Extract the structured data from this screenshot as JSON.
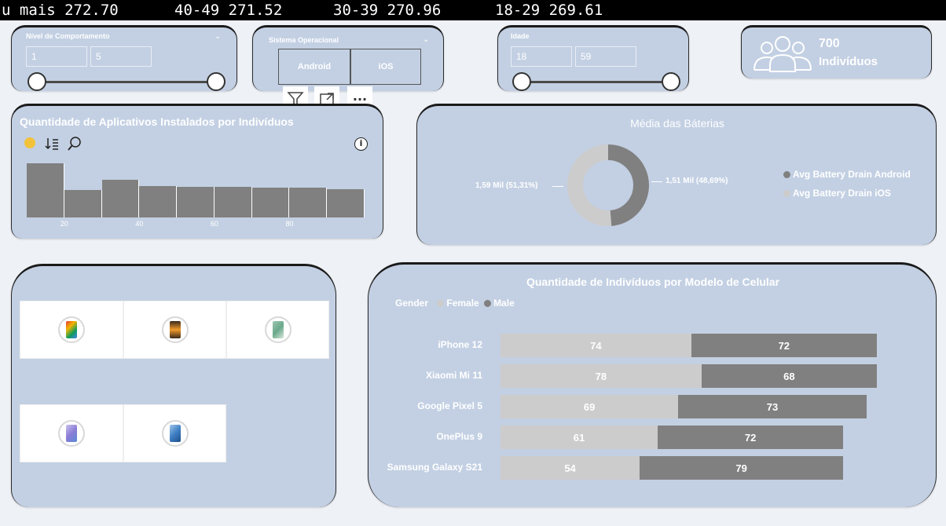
{
  "ticker": [
    {
      "text": "u mais 272.70"
    },
    {
      "text": "40-49 271.52"
    },
    {
      "text": "30-39 270.96"
    },
    {
      "text": "18-29 269.61"
    }
  ],
  "slicer_behavior": {
    "title": "Nível de Comportamento",
    "min": "1",
    "max": "5"
  },
  "slicer_os": {
    "title": "Sistema Operacional",
    "options": [
      "Android",
      "iOS"
    ]
  },
  "slicer_age": {
    "title": "Idade",
    "min": "18",
    "max": "59"
  },
  "kpi": {
    "value": "700",
    "label": "Indivíduos"
  },
  "visual_header": {
    "filter_icon": "filter-icon",
    "focus_icon": "focus-mode-icon",
    "more_icon": "more-options-icon",
    "more_label": "···"
  },
  "histogram": {
    "title": "Quantidade de Aplicativos Instalados por Indivíduos",
    "icons": [
      "palette-icon",
      "sort-icon",
      "zoom-icon",
      "info-icon"
    ],
    "info_glyph": "i"
  },
  "donut_card": {
    "title": "Média das Báterias",
    "label_left": "1,59 Mil (51,31%)",
    "label_right": "1,51 Mil (48,69%)",
    "legend": [
      "Avg Battery Drain Android",
      "Avg Battery Drain iOS"
    ]
  },
  "gallery": {
    "tiles": [
      {
        "icon": "phone-google-pixel-icon",
        "color": "#e23b2e"
      },
      {
        "icon": "phone-iphone-icon",
        "color": "#c4561a"
      },
      {
        "icon": "phone-xiaomi-icon",
        "color": "#6aa88a"
      },
      {
        "icon": "phone-oneplus-icon",
        "color": "#8b7cd6"
      },
      {
        "icon": "phone-samsung-icon",
        "color": "#3f7fc4"
      }
    ]
  },
  "bar_card": {
    "title": "Quantidade de Indivíduos por Modelo de Celular",
    "legend_title": "Gender",
    "legend": [
      "Female",
      "Male"
    ]
  },
  "colors": {
    "card_bg": "#c3d0e3",
    "dark_gray": "#808080",
    "light_gray": "#cccccc",
    "white": "#ffffff"
  },
  "chart_data": [
    {
      "type": "bar",
      "title": "Quantidade de Aplicativos Instalados por Indivíduos",
      "x_ticks": [
        "20",
        "40",
        "60",
        "80"
      ],
      "bins": [
        {
          "from": 10,
          "to": 20,
          "value": 72
        },
        {
          "from": 20,
          "to": 30,
          "value": 36
        },
        {
          "from": 30,
          "to": 40,
          "value": 50
        },
        {
          "from": 40,
          "to": 50,
          "value": 42
        },
        {
          "from": 50,
          "to": 60,
          "value": 41
        },
        {
          "from": 60,
          "to": 70,
          "value": 41
        },
        {
          "from": 70,
          "to": 80,
          "value": 40
        },
        {
          "from": 80,
          "to": 90,
          "value": 40
        },
        {
          "from": 90,
          "to": 100,
          "value": 38
        }
      ],
      "ylim": [
        0,
        75
      ]
    },
    {
      "type": "pie",
      "title": "Média das Báterias",
      "slices": [
        {
          "name": "Avg Battery Drain Android",
          "value": 1510,
          "label": "1,51 Mil (48,69%)",
          "color": "#808080"
        },
        {
          "name": "Avg Battery Drain iOS",
          "value": 1590,
          "label": "1,59 Mil (51,31%)",
          "color": "#cccccc"
        }
      ]
    },
    {
      "type": "bar",
      "title": "Quantidade de Indivíduos por Modelo de Celular",
      "categories": [
        "iPhone 12",
        "Xiaomi Mi 11",
        "Google Pixel 5",
        "OnePlus 9",
        "Samsung Galaxy S21"
      ],
      "series": [
        {
          "name": "Female",
          "values": [
            74,
            78,
            69,
            61,
            54
          ],
          "color": "#cccccc"
        },
        {
          "name": "Male",
          "values": [
            72,
            68,
            73,
            72,
            79
          ],
          "color": "#808080"
        }
      ],
      "legend_title": "Gender"
    }
  ]
}
